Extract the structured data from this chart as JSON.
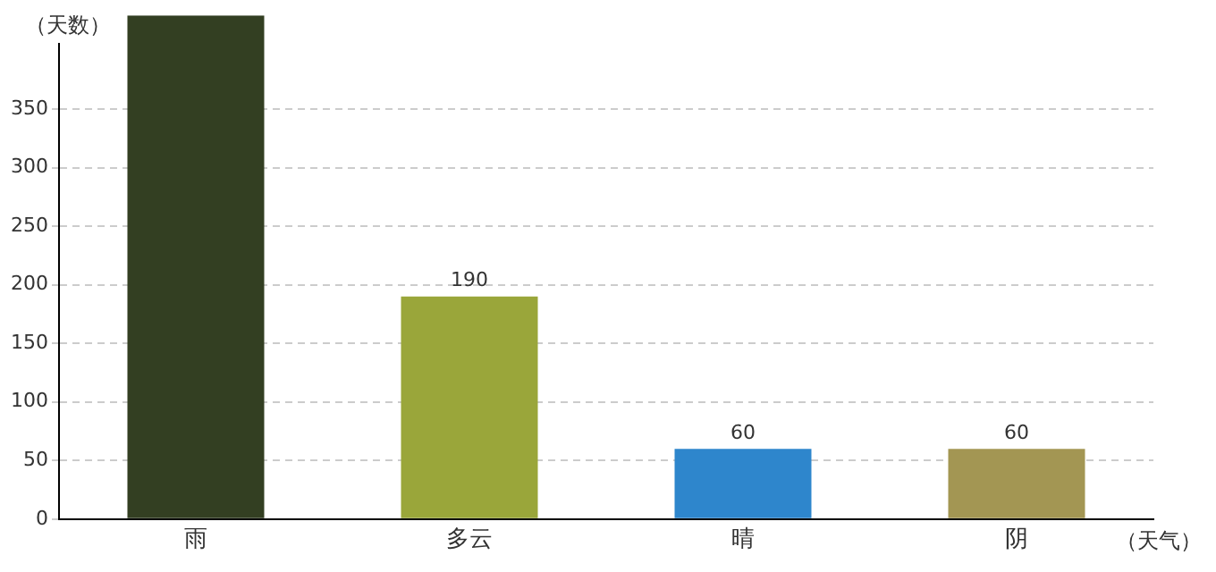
{
  "chart_data": {
    "type": "bar",
    "xlabel": "（天气）",
    "ylabel": "（天数）",
    "categories": [
      "雨",
      "多云",
      "晴",
      "阴"
    ],
    "values": [
      430,
      190,
      60,
      60
    ],
    "colors": [
      "#333f22",
      "#9aa63a",
      "#2e86cc",
      "#a39653"
    ],
    "value_labels": [
      null,
      "190",
      "60",
      "60"
    ],
    "ylim": [
      0,
      430
    ],
    "yticks": [
      0,
      50,
      100,
      150,
      200,
      250,
      300,
      350
    ],
    "grid": "y",
    "legend": false
  }
}
